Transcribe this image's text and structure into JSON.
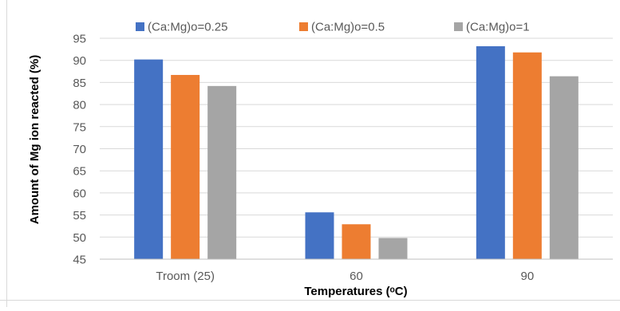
{
  "chart_data": {
    "type": "bar",
    "title": "",
    "categories": [
      "Troom (25)",
      "60",
      "90"
    ],
    "series": [
      {
        "name": "(Ca:Mg)o=0.25",
        "color": "#4472C4",
        "values": [
          90.2,
          55.6,
          93.2
        ]
      },
      {
        "name": "(Ca:Mg)o=0.5",
        "color": "#ED7D31",
        "values": [
          86.7,
          52.9,
          91.8
        ]
      },
      {
        "name": "(Ca:Mg)o=1",
        "color": "#A5A5A5",
        "values": [
          84.2,
          49.8,
          86.4
        ]
      }
    ],
    "xlabel": "Temperatures (ᵒC)",
    "ylabel": "Amount of Mg ion reacted (%)",
    "ylim": [
      45,
      95
    ],
    "yticks": [
      45,
      50,
      55,
      60,
      65,
      70,
      75,
      80,
      85,
      90,
      95
    ],
    "grid": true,
    "legend_position": "top"
  }
}
